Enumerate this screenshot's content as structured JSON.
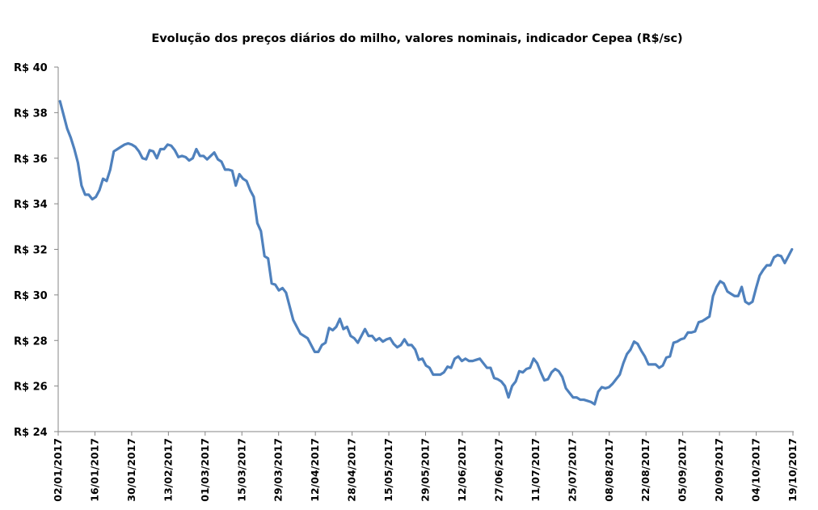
{
  "chart_data": {
    "type": "line",
    "title": "Evolução dos preços diários do milho, valores nominais, indicador Cepea (R$/sc)",
    "xlabel": "",
    "ylabel": "",
    "ylim": [
      24,
      40
    ],
    "y_ticks": [
      40,
      38,
      36,
      34,
      32,
      30,
      28,
      26,
      24
    ],
    "y_tick_labels": [
      "R$ 40",
      "R$ 38",
      "R$ 36",
      "R$ 34",
      "R$ 32",
      "R$ 30",
      "R$ 28",
      "R$ 26",
      "R$ 24"
    ],
    "x_tick_labels": [
      "02/01/2017",
      "16/01/2017",
      "30/01/2017",
      "13/02/2017",
      "01/03/2017",
      "15/03/2017",
      "29/03/2017",
      "12/04/2017",
      "28/04/2017",
      "15/05/2017",
      "29/05/2017",
      "12/06/2017",
      "27/06/2017",
      "11/07/2017",
      "25/07/2017",
      "08/08/2017",
      "22/08/2017",
      "05/09/2017",
      "20/09/2017",
      "04/10/2017",
      "19/10/2017"
    ],
    "grid": false,
    "legend": "none",
    "line_color": "#4F81BD",
    "series": [
      {
        "values": [
          38.5,
          37.9,
          37.3,
          36.9,
          36.4,
          35.8,
          34.8,
          34.4,
          34.4,
          34.2,
          34.3,
          34.6,
          35.1,
          35.0,
          35.5,
          36.3,
          36.4,
          36.5,
          36.6,
          36.65,
          36.6,
          36.5,
          36.3,
          36.0,
          35.95,
          36.35,
          36.3,
          36.0,
          36.4,
          36.4,
          36.6,
          36.55,
          36.35,
          36.05,
          36.1,
          36.05,
          35.9,
          36.0,
          36.4,
          36.1,
          36.1,
          35.95,
          36.1,
          36.25,
          35.95,
          35.85,
          35.5,
          35.5,
          35.45,
          34.8,
          35.3,
          35.1,
          35.0,
          34.6,
          34.3,
          33.15,
          32.8,
          31.7,
          31.6,
          30.5,
          30.45,
          30.2,
          30.3,
          30.1,
          29.5,
          28.9,
          28.6,
          28.3,
          28.2,
          28.1,
          27.8,
          27.5,
          27.5,
          27.8,
          27.9,
          28.55,
          28.45,
          28.6,
          28.95,
          28.5,
          28.6,
          28.2,
          28.1,
          27.9,
          28.2,
          28.5,
          28.2,
          28.2,
          28.0,
          28.1,
          27.95,
          28.05,
          28.1,
          27.85,
          27.7,
          27.8,
          28.05,
          27.8,
          27.8,
          27.6,
          27.15,
          27.2,
          26.9,
          26.8,
          26.5,
          26.5,
          26.5,
          26.6,
          26.85,
          26.8,
          27.2,
          27.3,
          27.1,
          27.2,
          27.1,
          27.1,
          27.15,
          27.2,
          27.0,
          26.8,
          26.8,
          26.35,
          26.3,
          26.2,
          26.0,
          25.5,
          26.0,
          26.2,
          26.65,
          26.6,
          26.75,
          26.8,
          27.2,
          27.0,
          26.6,
          26.25,
          26.3,
          26.6,
          26.75,
          26.65,
          26.4,
          25.9,
          25.7,
          25.5,
          25.5,
          25.4,
          25.4,
          25.35,
          25.3,
          25.2,
          25.75,
          25.95,
          25.9,
          25.95,
          26.1,
          26.3,
          26.5,
          27.0,
          27.4,
          27.6,
          27.95,
          27.85,
          27.55,
          27.3,
          26.95,
          26.95,
          26.95,
          26.8,
          26.9,
          27.25,
          27.3,
          27.9,
          27.95,
          28.05,
          28.1,
          28.35,
          28.35,
          28.4,
          28.8,
          28.85,
          28.95,
          29.05,
          29.95,
          30.35,
          30.6,
          30.5,
          30.15,
          30.05,
          29.95,
          29.95,
          30.35,
          29.7,
          29.6,
          29.7,
          30.3,
          30.85,
          31.1,
          31.3,
          31.3,
          31.65,
          31.75,
          31.7,
          31.4,
          31.7,
          32.0
        ]
      }
    ]
  }
}
